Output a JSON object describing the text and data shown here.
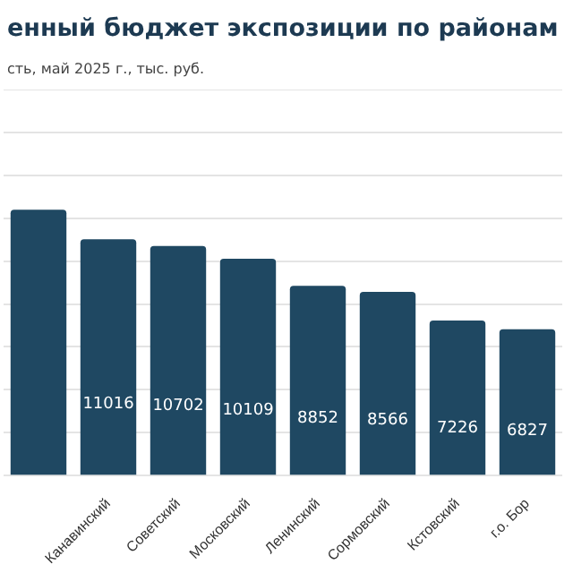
{
  "chart_data": {
    "type": "bar",
    "title": "енный бюджет экспозиции по районам",
    "subtitle": "сть, май 2025 г., тыс. руб.",
    "categories": [
      null,
      "Канавинский",
      "Советский",
      "Московский",
      "Ленинский",
      "Сормовский",
      "Кстовский",
      "г.о. Бор"
    ],
    "values": [
      12400,
      11016,
      10702,
      10109,
      8852,
      8566,
      7226,
      6827
    ],
    "value_labels": [
      null,
      "11016",
      "10702",
      "10109",
      "8852",
      "8566",
      "7226",
      "6827"
    ],
    "color": "#1f4862",
    "ylim": [
      0,
      18000
    ],
    "yticks": [
      0,
      2000,
      4000,
      6000,
      8000,
      10000,
      12000,
      14000,
      16000,
      18000
    ],
    "grid": "y",
    "tick_labels": "x",
    "legend": false
  }
}
